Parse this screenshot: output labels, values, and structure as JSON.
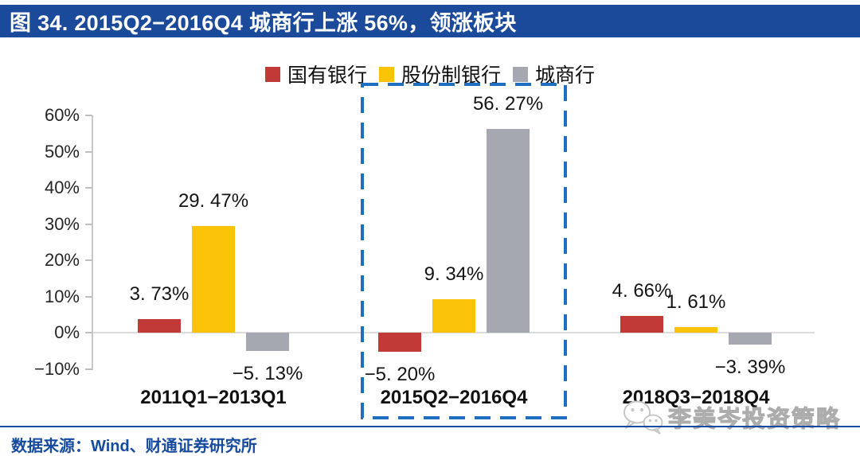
{
  "figure": {
    "title": "图 34. 2015Q2−2016Q4 城商行上涨 56%，领涨板块"
  },
  "colors": {
    "banner_bg": "#1B4A9B",
    "footer_blue": "#164A9C",
    "highlight_dash": "#1E6FC4",
    "axis_gray": "#C8C8C8"
  },
  "chart_data": {
    "type": "bar",
    "categories": [
      "2011Q1−2013Q1",
      "2015Q2−2016Q4",
      "2018Q3−2018Q4"
    ],
    "series": [
      {
        "name": "国有银行",
        "color": "#C13A38",
        "values": [
          3.73,
          -5.2,
          4.66
        ],
        "labels": [
          "3. 73%",
          "−5. 20%",
          "4. 66%"
        ]
      },
      {
        "name": "股份制银行",
        "color": "#FBC308",
        "values": [
          29.47,
          9.34,
          1.61
        ],
        "labels": [
          "29. 47%",
          "9. 34%",
          "1. 61%"
        ]
      },
      {
        "name": "城商行",
        "color": "#A5A8B1",
        "values": [
          -5.13,
          56.27,
          -3.39
        ],
        "labels": [
          "−5. 13%",
          "56. 27%",
          "−3. 39%"
        ]
      }
    ],
    "yticks": [
      {
        "label": "60%",
        "value": 60
      },
      {
        "label": "50%",
        "value": 50
      },
      {
        "label": "40%",
        "value": 40
      },
      {
        "label": "30%",
        "value": 30
      },
      {
        "label": "20%",
        "value": 20
      },
      {
        "label": "10%",
        "value": 10
      },
      {
        "label": "0%",
        "value": 0
      },
      {
        "label": "−10%",
        "value": -10
      }
    ],
    "ylim": [
      -10,
      60
    ],
    "xlabel": "",
    "ylabel": "",
    "grid": false,
    "legend_position": "top",
    "highlight": {
      "category": "2015Q2−2016Q4",
      "index": 1
    }
  },
  "footer": {
    "source": "数据来源：Wind、财通证券研究所"
  },
  "watermark": {
    "label": "李美岑投资策略"
  }
}
